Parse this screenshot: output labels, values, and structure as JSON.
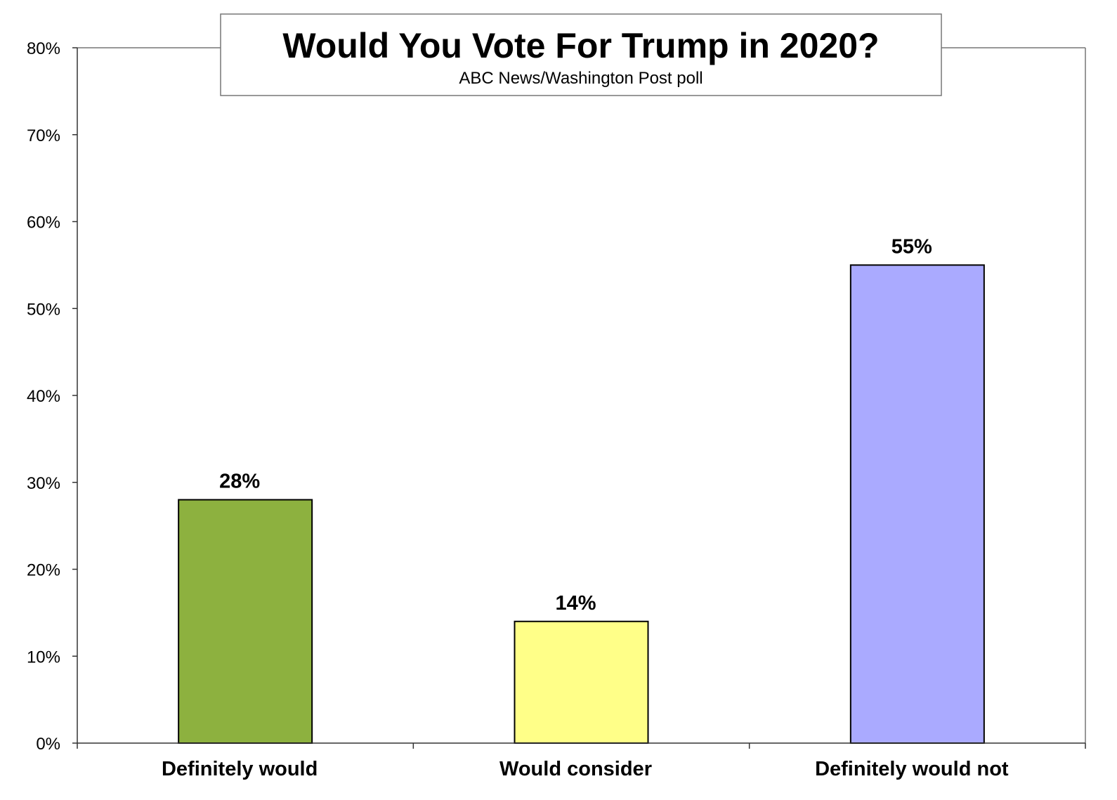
{
  "chart_data": {
    "type": "bar",
    "title": "Would You Vote For Trump in 2020?",
    "subtitle": "ABC News/Washington Post poll",
    "categories": [
      "Definitely would",
      "Would consider",
      "Definitely would not"
    ],
    "values": [
      28,
      14,
      55
    ],
    "data_labels": [
      "28%",
      "14%",
      "55%"
    ],
    "colors": [
      "#8db13f",
      "#ffff88",
      "#aaaaff"
    ],
    "xlabel": "",
    "ylabel": "",
    "ylim": [
      0,
      80
    ],
    "yticks": [
      0,
      10,
      20,
      30,
      40,
      50,
      60,
      70,
      80
    ],
    "ytick_labels": [
      "0%",
      "10%",
      "20%",
      "30%",
      "40%",
      "50%",
      "60%",
      "70%",
      "80%"
    ],
    "grid": false,
    "legend": "none"
  }
}
